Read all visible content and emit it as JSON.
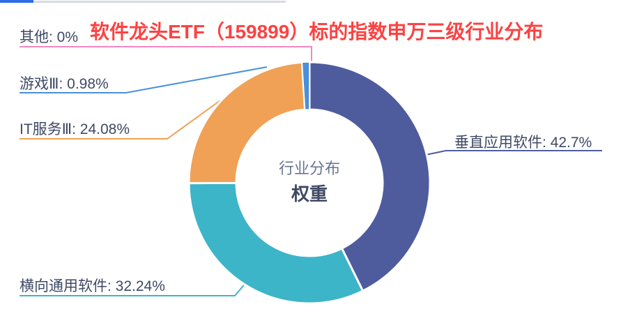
{
  "accent_bar": {
    "blue": "#2e6ce6",
    "gray": "#d9dae3"
  },
  "title": {
    "text": "软件龙头ETF（159899）标的指数申万三级行业分布",
    "color": "#fc4242"
  },
  "chart_data": {
    "type": "pie",
    "subtype": "donut",
    "title": "行业分布 权重",
    "center_label_line1": "行业分布",
    "center_label_line2": "权重",
    "start_angle_deg": 0,
    "direction": "clockwise",
    "center": [
      444,
      262
    ],
    "inner_radius": 105,
    "outer_radius": 173,
    "unit": "%",
    "series": [
      {
        "name": "垂直应用软件",
        "value": 42.7,
        "color": "#4e5c9e",
        "label": "垂直应用软件: 42.7%"
      },
      {
        "name": "横向通用软件",
        "value": 32.24,
        "color": "#3cb5c8",
        "label": "横向通用软件: 32.24%"
      },
      {
        "name": "IT服务Ⅲ",
        "value": 24.08,
        "color": "#f0a155",
        "label": "IT服务Ⅲ: 24.08%"
      },
      {
        "name": "游戏Ⅲ",
        "value": 0.98,
        "color": "#4a90d9",
        "label": "游戏Ⅲ: 0.98%"
      },
      {
        "name": "其他",
        "value": 0,
        "color": "#f287c0",
        "label": "其他: 0%"
      }
    ],
    "legend_position": "none",
    "grid": false
  }
}
